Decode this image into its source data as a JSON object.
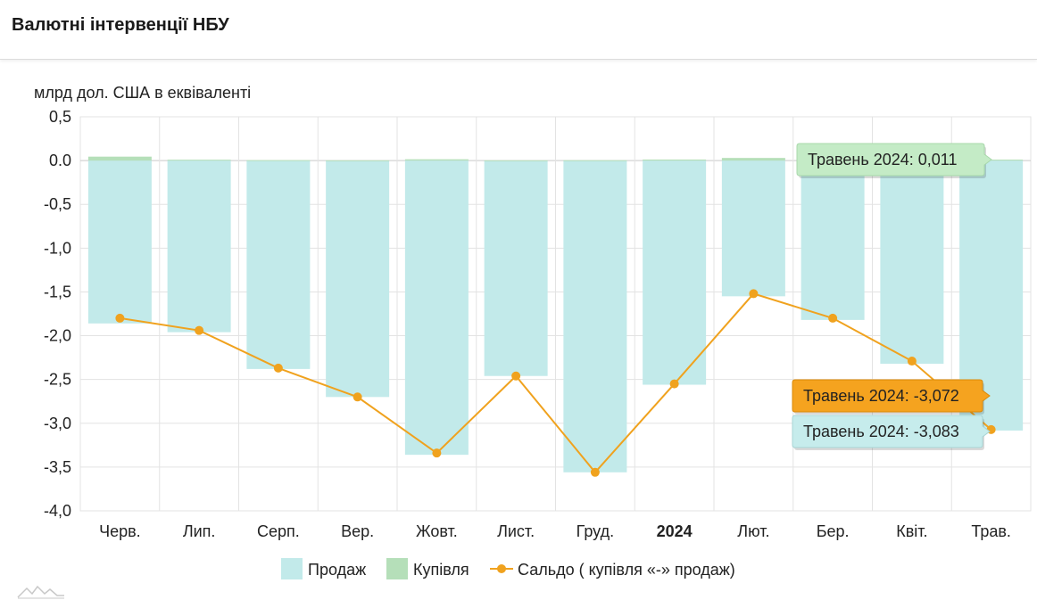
{
  "header": {
    "title": "Валютні інтервенції НБУ"
  },
  "chart_data": {
    "type": "bar",
    "ylabel": "млрд дол. США в еквіваленті",
    "ylim": [
      -4.0,
      0.5
    ],
    "yticks": [
      "0,5",
      "0.0",
      "-0,5",
      "-1,0",
      "-1,5",
      "-2,0",
      "-2,5",
      "-3,0",
      "-3,5",
      "-4,0"
    ],
    "ytick_values": [
      0.5,
      0,
      -0.5,
      -1.0,
      -1.5,
      -2.0,
      -2.5,
      -3.0,
      -3.5,
      -4.0
    ],
    "categories": [
      "Черв.",
      "Лип.",
      "Серп.",
      "Вер.",
      "Жовт.",
      "Лист.",
      "Груд.",
      "2024",
      "Лют.",
      "Бер.",
      "Квіт.",
      "Трав."
    ],
    "bold_categories": [
      "2024"
    ],
    "grid": true,
    "legend_position": "bottom",
    "series": [
      {
        "name": "Продаж",
        "kind": "bar",
        "color": "#c2eaea",
        "values": [
          -1.86,
          -1.96,
          -2.38,
          -2.7,
          -3.36,
          -2.46,
          -3.56,
          -2.56,
          -1.55,
          -1.82,
          -2.32,
          -3.083
        ]
      },
      {
        "name": "Купівля",
        "kind": "bar",
        "color": "#b5dfb9",
        "values": [
          0.045,
          0.01,
          0.005,
          0.003,
          0.015,
          0.003,
          0.004,
          0.012,
          0.03,
          0.005,
          0.006,
          0.011
        ]
      },
      {
        "name": "Сальдо ( купівля «-» продаж)",
        "kind": "line",
        "color": "#f0a21e",
        "values": [
          -1.8,
          -1.94,
          -2.37,
          -2.7,
          -3.34,
          -2.46,
          -3.56,
          -2.55,
          -1.52,
          -1.8,
          -2.29,
          -3.072
        ]
      }
    ],
    "tooltips": [
      {
        "text": "Травень 2024: 0,011",
        "series": "Купівля",
        "bg": "#c4ebc6",
        "border": "#a8d8ab"
      },
      {
        "text": "Травень 2024: -3,072",
        "series": "Сальдо ( купівля «-» продаж)",
        "bg": "#f5a31f",
        "border": "#d98a0a"
      },
      {
        "text": "Травень 2024: -3,083",
        "series": "Продаж",
        "bg": "#c6ecec",
        "border": "#a8d4d4"
      }
    ]
  }
}
